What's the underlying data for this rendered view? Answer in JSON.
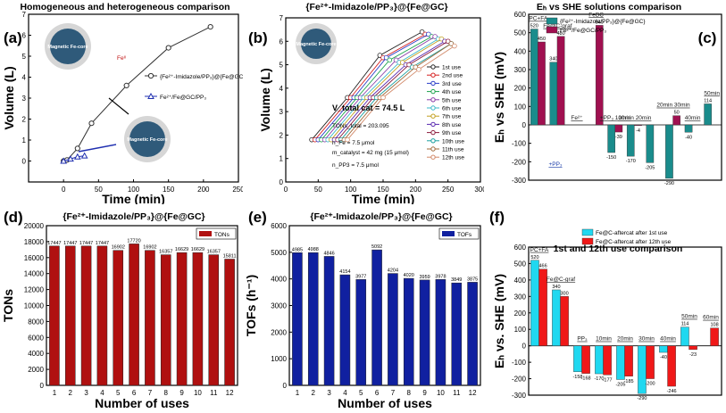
{
  "panels": {
    "a": {
      "label": "(a)",
      "title": "Homogeneous and heterogeneous comparison"
    },
    "b": {
      "label": "(b)",
      "title": "{Fe²⁺-Imidazole/PP₃}@{Fe@GC}"
    },
    "c": {
      "label": "(c)",
      "title": "Eₕ vs SHE solutions comparison"
    },
    "d": {
      "label": "(d)",
      "title": "{Fe²⁺-Imidazole/PP₃}@{Fe@GC}"
    },
    "e": {
      "label": "(e)",
      "title": "{Fe²⁺-Imidazole/PP₃}@{Fe@GC}"
    },
    "f": {
      "label": "(f)",
      "title": "1st and 12th use comparison"
    }
  },
  "annotations": {
    "a_magnetic_core": "Magnetic Fe-core",
    "a_feII": "Feᴵᴵ",
    "b_magnetic_core": "Magnetic Fe-core",
    "b_vtotal": "V_total cat = 74.5 L",
    "b_tons_total": "TONs_total = 203.095",
    "b_nfe": "n_Fe = 7.5 μmol",
    "b_mcat": "m_catalyst = 42 mg (15 μmol)",
    "b_npp3": "n_PP3 = 7.5 μmol"
  },
  "chart_data": [
    {
      "id": "a",
      "type": "line",
      "xlabel": "Time (min)",
      "ylabel": "Volume (L)",
      "xlim": [
        -50,
        250
      ],
      "ylim": [
        -1,
        7
      ],
      "xticks": [
        0,
        50,
        100,
        150,
        200,
        250
      ],
      "yticks": [
        0,
        1,
        2,
        3,
        4,
        5,
        6,
        7
      ],
      "series": [
        {
          "name": "{Fe²⁺-Imidazole/PP₃}@{Fe@GC}",
          "color": "#333333",
          "marker": "circle",
          "x": [
            0,
            5,
            20,
            40,
            90,
            150,
            210
          ],
          "y": [
            0,
            0.05,
            0.6,
            1.8,
            3.6,
            5.4,
            6.4
          ]
        },
        {
          "name": "Fe²⁺/Fe@GC/PP₃",
          "color": "#1f2fb0",
          "marker": "triangle",
          "x": [
            0,
            10,
            20,
            30
          ],
          "y": [
            0,
            0.1,
            0.2,
            0.25
          ]
        }
      ]
    },
    {
      "id": "b",
      "type": "line",
      "xlabel": "Time (min)",
      "ylabel": "Volume (L)",
      "xlim": [
        0,
        300
      ],
      "ylim": [
        0,
        7
      ],
      "xticks": [
        0,
        50,
        100,
        150,
        200,
        250,
        300
      ],
      "yticks": [
        0,
        1,
        2,
        3,
        4,
        5,
        6,
        7
      ],
      "series": [
        {
          "name": "1st use",
          "color": "#222222",
          "x": [
            40,
            95,
            145,
            210
          ],
          "y": [
            1.8,
            3.6,
            5.4,
            6.4
          ]
        },
        {
          "name": "2nd use",
          "color": "#d62020",
          "x": [
            45,
            100,
            150,
            215
          ],
          "y": [
            1.8,
            3.6,
            5.3,
            6.3
          ]
        },
        {
          "name": "3rd use",
          "color": "#2a3cc8",
          "x": [
            50,
            105,
            155,
            220
          ],
          "y": [
            1.8,
            3.6,
            5.3,
            6.3
          ]
        },
        {
          "name": "4th use",
          "color": "#1aa24a",
          "x": [
            55,
            110,
            160,
            225
          ],
          "y": [
            1.8,
            3.6,
            5.2,
            6.2
          ]
        },
        {
          "name": "5th use",
          "color": "#8a3da8",
          "x": [
            60,
            115,
            170,
            230
          ],
          "y": [
            1.8,
            3.6,
            5.2,
            6.2
          ]
        },
        {
          "name": "6th use",
          "color": "#38b8c8",
          "x": [
            65,
            120,
            175,
            235
          ],
          "y": [
            1.8,
            3.6,
            5.1,
            6.1
          ]
        },
        {
          "name": "7th use",
          "color": "#c2a020",
          "x": [
            70,
            125,
            180,
            240
          ],
          "y": [
            1.8,
            3.6,
            5.1,
            6.1
          ]
        },
        {
          "name": "8th use",
          "color": "#5a2ab0",
          "x": [
            75,
            130,
            185,
            245
          ],
          "y": [
            1.8,
            3.6,
            5.0,
            6.0
          ]
        },
        {
          "name": "9th use",
          "color": "#8a1a3a",
          "x": [
            80,
            135,
            190,
            250
          ],
          "y": [
            1.8,
            3.6,
            5.0,
            6.0
          ]
        },
        {
          "name": "10th use",
          "color": "#1aa0a0",
          "x": [
            85,
            140,
            195,
            255
          ],
          "y": [
            1.8,
            3.6,
            4.9,
            5.9
          ]
        },
        {
          "name": "11th use",
          "color": "#a06a3a",
          "x": [
            90,
            145,
            200,
            255
          ],
          "y": [
            1.8,
            3.6,
            4.9,
            5.9
          ]
        },
        {
          "name": "12th use",
          "color": "#d28a6a",
          "x": [
            95,
            150,
            205,
            260
          ],
          "y": [
            1.8,
            3.6,
            4.8,
            5.8
          ]
        }
      ]
    },
    {
      "id": "c",
      "type": "bar",
      "xlabel": "",
      "ylabel": "Eₕ vs SHE (mV)",
      "ylim": [
        -300,
        600
      ],
      "yticks": [
        -300,
        -200,
        -100,
        0,
        100,
        200,
        300,
        400,
        500,
        600
      ],
      "categories": [
        "PC+FA",
        "Fe@C-graf",
        "Fe²⁺",
        "FeBC",
        "+PP₃",
        "10min",
        "20min",
        "30min",
        "40min",
        "50min"
      ],
      "category_annotations": [
        "PC+FA",
        "Fe@C-graf",
        "Fe²⁺",
        "FeBC",
        "+PP₃ 10min",
        "10min 20min",
        "",
        "20min 30min",
        "40min",
        "50min"
      ],
      "legend": [
        "{Fe²⁺-Imidazole/PP₃}@{Fe@GC}",
        "Fe²⁺/Fe@GC/PP₃"
      ],
      "series": [
        {
          "name": "{Fe²⁺-Imidazole/PP₃}@{Fe@GC}",
          "color": "#1a8c8c",
          "values": [
            520,
            340,
            null,
            null,
            -150,
            -170,
            -205,
            -290,
            -40,
            114
          ]
        },
        {
          "name": "Fe²⁺/Fe@GC/PP₃",
          "color": "#a01050",
          "values": [
            450,
            480,
            null,
            540,
            -39,
            -4,
            null,
            50,
            null,
            null
          ]
        }
      ],
      "extra_labels": [
        "+PP₃"
      ]
    },
    {
      "id": "d",
      "type": "bar",
      "xlabel": "Number of uses",
      "ylabel": "TONs",
      "legend": [
        "TONs"
      ],
      "color": "#b01010",
      "ylim": [
        0,
        20000
      ],
      "yticks": [
        0,
        2000,
        4000,
        6000,
        8000,
        10000,
        12000,
        14000,
        16000,
        18000,
        20000
      ],
      "categories": [
        "1",
        "2",
        "3",
        "4",
        "5",
        "6",
        "7",
        "8",
        "9",
        "10",
        "11",
        "12"
      ],
      "values": [
        17447,
        17447,
        17447,
        17447,
        16902,
        17720,
        16902,
        16357,
        16629,
        16629,
        16357,
        15811
      ]
    },
    {
      "id": "e",
      "type": "bar",
      "xlabel": "Number of uses",
      "ylabel": "TOFs (h⁻¹)",
      "legend": [
        "TOFs"
      ],
      "color": "#1020a0",
      "ylim": [
        0,
        6000
      ],
      "yticks": [
        0,
        1000,
        2000,
        3000,
        4000,
        5000,
        6000
      ],
      "categories": [
        "1",
        "2",
        "3",
        "4",
        "5",
        "6",
        "7",
        "8",
        "9",
        "10",
        "11",
        "12"
      ],
      "values": [
        4985,
        4988,
        4846,
        4154,
        3977,
        5092,
        4204,
        4020,
        3959,
        3978,
        3849,
        3875
      ]
    },
    {
      "id": "f",
      "type": "bar",
      "xlabel": "",
      "ylabel": "Eₕ vs. SHE (mV)",
      "ylim": [
        -300,
        600
      ],
      "yticks": [
        -300,
        -200,
        -100,
        0,
        100,
        200,
        300,
        400,
        500,
        600
      ],
      "categories": [
        "PC+FA",
        "Fe@C-graf",
        "PP₃",
        "10min",
        "20min",
        "30min",
        "40min",
        "50min",
        "60min"
      ],
      "series": [
        {
          "name": "Fe@C-aftercat after 1st use",
          "color": "#20d8f0",
          "values": [
            520,
            340,
            -158,
            -170,
            -205,
            -290,
            -40,
            114,
            null
          ]
        },
        {
          "name": "Fe@C-aftercat after 12th use",
          "color": "#f01818",
          "values": [
            466,
            300,
            -168,
            -177,
            -185,
            -200,
            -246,
            -23,
            108
          ]
        }
      ]
    }
  ]
}
